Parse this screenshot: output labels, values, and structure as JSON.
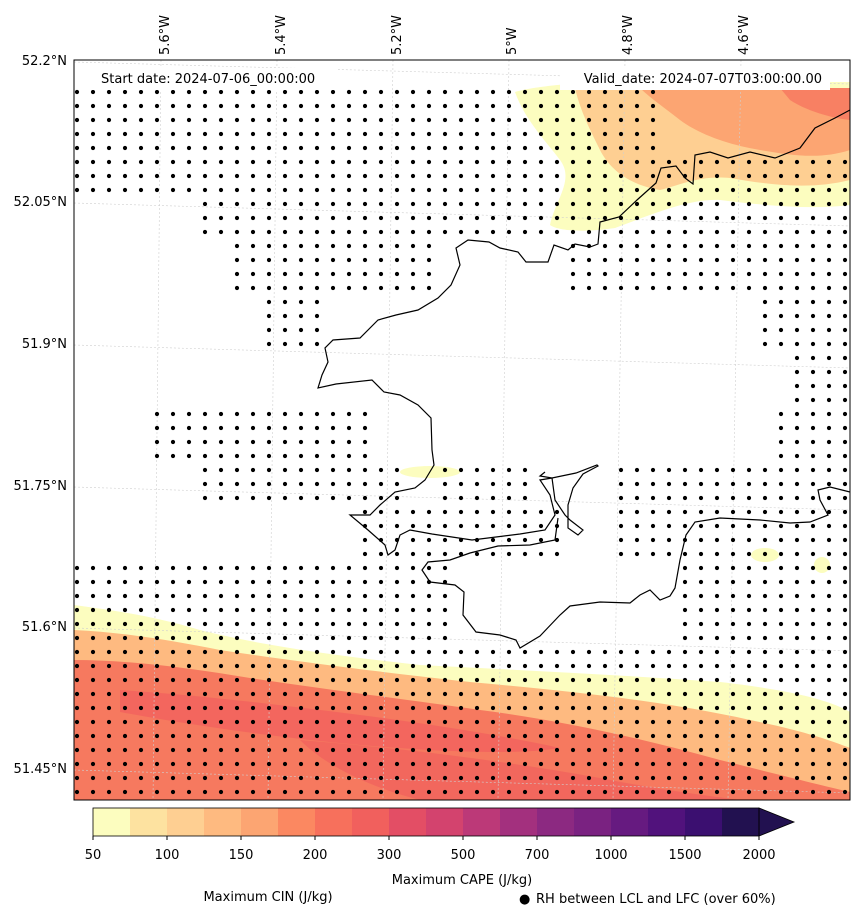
{
  "map": {
    "start_label": "Start date: 2024-07-06_00:00:00",
    "valid_label": "Valid_date: 2024-07-07T03:00:00.00",
    "lon_ticks": [
      "5.6°W",
      "5.4°W",
      "5.2°W",
      "5°W",
      "4.8°W",
      "4.6°W"
    ],
    "lat_ticks": [
      "52.2°N",
      "52.05°N",
      "51.9°N",
      "51.75°N",
      "51.6°N",
      "51.45°N"
    ]
  },
  "colorbar": {
    "title": "Maximum CAPE (J/kg)",
    "levels": [
      "50",
      "100",
      "150",
      "200",
      "300",
      "500",
      "700",
      "1000",
      "1500",
      "2000"
    ],
    "colors": [
      "#fcfdbf",
      "#fde2a0",
      "#fecf92",
      "#feba80",
      "#fca572",
      "#fb8861",
      "#f7705c",
      "#f1605d",
      "#e34e65",
      "#d3436e",
      "#bc3978",
      "#a3307e",
      "#8c2981",
      "#7a2281",
      "#661a80",
      "#51127c",
      "#3b0f70",
      "#221150"
    ]
  },
  "legend": {
    "cin_label": "Maximum CIN (J/kg)",
    "cin_color": "#ff0000",
    "rh_marker": "●",
    "rh_label": "RH between LCL and LFC (over 60%)"
  }
}
